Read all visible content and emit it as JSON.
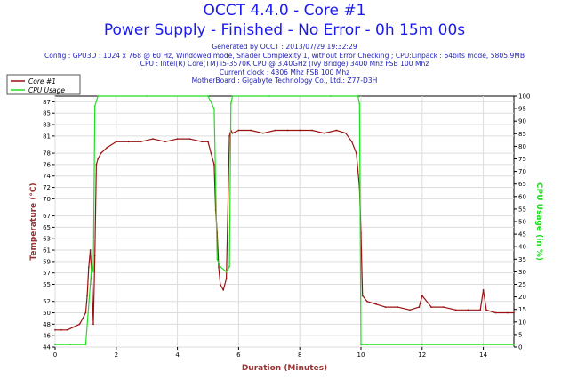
{
  "header": {
    "title": "OCCT 4.4.0 - Core #1",
    "subtitle": "Power Supply - Finished - No Error - 0h 15m 00s",
    "info": [
      "Generated by OCCT : 2013/07/29 19:32:29",
      "Config : GPU3D : 1024 x 768 @ 60 Hz, Windowed mode, Shader Complexity 1, without Error Checking ; CPU:Linpack : 64bits mode, 5805.9MB",
      "CPU : Intel(R) Core(TM) i5-3570K CPU @ 3.40GHz (Ivy Bridge) 3400 Mhz FSB 100 Mhz",
      "Current clock : 4306 Mhz FSB 100 Mhz",
      "MotherBoard : Gigabyte Technology Co., Ltd.: Z77-D3H"
    ]
  },
  "colors": {
    "core": "#991111",
    "cpu": "#22dd22",
    "title": "#1a1aee",
    "axis": "#993333"
  },
  "chart_data": {
    "type": "line",
    "xlabel": "Duration (Minutes)",
    "ylabel": "Temperature (°C)",
    "y2label": "CPU Usage (in %)",
    "xlim": [
      0,
      15
    ],
    "ylim": [
      44,
      88
    ],
    "y2lim": [
      0,
      100
    ],
    "x_ticks": [
      0,
      2,
      4,
      6,
      8,
      10,
      12,
      14
    ],
    "y_ticks": [
      44,
      46,
      48,
      50,
      52,
      55,
      57,
      59,
      61,
      63,
      65,
      67,
      70,
      72,
      74,
      76,
      78,
      81,
      83,
      85,
      87
    ],
    "y2_ticks": [
      0,
      5,
      10,
      15,
      20,
      25,
      30,
      35,
      40,
      45,
      50,
      55,
      60,
      65,
      70,
      75,
      80,
      85,
      90,
      95,
      100
    ],
    "grid": true,
    "legend_position": "top-left",
    "series": [
      {
        "name": "Core #1",
        "axis": "left",
        "x": [
          0,
          0.2,
          0.4,
          0.6,
          0.8,
          0.9,
          1.0,
          1.05,
          1.1,
          1.15,
          1.2,
          1.25,
          1.3,
          1.35,
          1.4,
          1.5,
          1.7,
          2.0,
          2.4,
          2.8,
          3.2,
          3.6,
          4.0,
          4.4,
          4.8,
          5.0,
          5.1,
          5.2,
          5.25,
          5.3,
          5.35,
          5.4,
          5.5,
          5.6,
          5.7,
          5.75,
          5.8,
          6.0,
          6.4,
          6.8,
          7.2,
          7.6,
          8.0,
          8.4,
          8.8,
          9.2,
          9.5,
          9.7,
          9.85,
          9.95,
          10.0,
          10.05,
          10.2,
          10.5,
          10.8,
          11.2,
          11.6,
          11.9,
          12.0,
          12.3,
          12.7,
          13.1,
          13.5,
          13.9,
          14.0,
          14.1,
          14.4,
          14.8,
          15.0
        ],
        "values": [
          47,
          47,
          47,
          47.5,
          48,
          49,
          50,
          53,
          58,
          61,
          56,
          48,
          60,
          76,
          77,
          78,
          79,
          80,
          80,
          80,
          80.5,
          80,
          80.5,
          80.5,
          80,
          80,
          78,
          76,
          68,
          64,
          58,
          55,
          54,
          56,
          81,
          82,
          81.5,
          82,
          82,
          81.5,
          82,
          82,
          82,
          82,
          81.5,
          82,
          81.5,
          80,
          78,
          72,
          64,
          53,
          52,
          51.5,
          51,
          51,
          50.5,
          51,
          53,
          51,
          51,
          50.5,
          50.5,
          50.5,
          54,
          50.5,
          50,
          50,
          50
        ]
      },
      {
        "name": "CPU Usage",
        "axis": "right",
        "x": [
          0,
          0.5,
          1.0,
          1.15,
          1.2,
          1.25,
          1.3,
          1.4,
          3.0,
          5.0,
          5.2,
          5.3,
          5.4,
          5.6,
          5.7,
          5.75,
          5.8,
          7.0,
          9.0,
          9.9,
          9.95,
          10.0,
          10.05,
          10.2,
          12.0,
          15.0
        ],
        "values": [
          1,
          1,
          1,
          25,
          33,
          30,
          96,
          100,
          100,
          100,
          95,
          35,
          32,
          30,
          32,
          97,
          100,
          100,
          100,
          100,
          97,
          1,
          1,
          1,
          1,
          1
        ]
      }
    ]
  }
}
